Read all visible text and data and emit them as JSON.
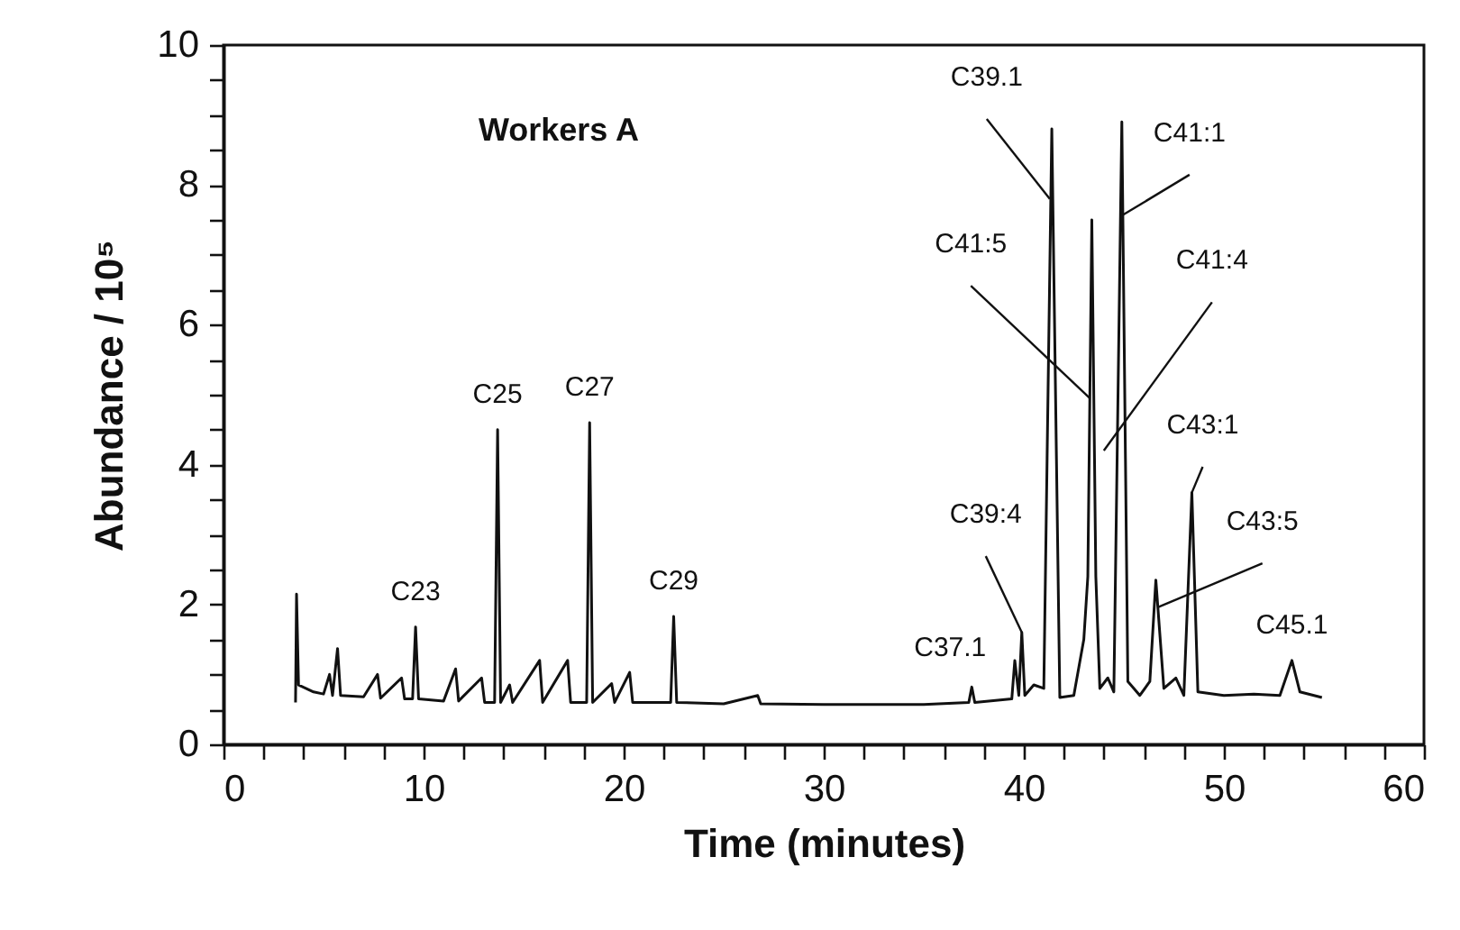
{
  "chart_data": {
    "type": "line",
    "xlabel": "Time  (minutes)",
    "ylabel": "Abundance / 10⁵",
    "xlim": [
      0,
      60
    ],
    "ylim": [
      0,
      10
    ],
    "xticks": [
      0,
      {
        "value": 2,
        "label": null
      },
      {
        "value": 4,
        "label": null
      },
      {
        "value": 6,
        "label": null
      },
      {
        "value": 8,
        "label": null
      },
      10,
      {
        "value": 12,
        "label": null
      },
      {
        "value": 14,
        "label": null
      },
      {
        "value": 16,
        "label": null
      },
      {
        "value": 18,
        "label": null
      },
      20,
      {
        "value": 22,
        "label": null
      },
      {
        "value": 24,
        "label": null
      },
      {
        "value": 26,
        "label": null
      },
      {
        "value": 28,
        "label": null
      },
      30,
      {
        "value": 32,
        "label": null
      },
      {
        "value": 34,
        "label": null
      },
      {
        "value": 36,
        "label": null
      },
      {
        "value": 38,
        "label": null
      },
      40,
      {
        "value": 42,
        "label": null
      },
      {
        "value": 44,
        "label": null
      },
      {
        "value": 46,
        "label": null
      },
      {
        "value": 48,
        "label": null
      },
      50,
      {
        "value": 52,
        "label": null
      },
      {
        "value": 54,
        "label": null
      },
      {
        "value": 56,
        "label": null
      },
      {
        "value": 58,
        "label": null
      },
      60
    ],
    "yticks": [
      0,
      {
        "value": 0.5,
        "label": null
      },
      {
        "value": 1,
        "label": null
      },
      {
        "value": 1.5,
        "label": null
      },
      2,
      {
        "value": 2.5,
        "label": null
      },
      {
        "value": 3,
        "label": null
      },
      {
        "value": 3.5,
        "label": null
      },
      4,
      {
        "value": 4.5,
        "label": null
      },
      {
        "value": 5,
        "label": null
      },
      {
        "value": 5.5,
        "label": null
      },
      6,
      {
        "value": 6.5,
        "label": null
      },
      {
        "value": 7,
        "label": null
      },
      {
        "value": 7.5,
        "label": null
      },
      8,
      {
        "value": 8.5,
        "label": null
      },
      {
        "value": 9,
        "label": null
      },
      {
        "value": 9.5,
        "label": null
      },
      10
    ],
    "grid": false,
    "marker": "none",
    "line_style": "solid",
    "series": [
      {
        "color": "#111111",
        "x": [
          3.6,
          3.65,
          3.75,
          4.5,
          5.0,
          5.3,
          5.45,
          5.7,
          5.85,
          7.0,
          7.7,
          7.85,
          8.9,
          9.05,
          9.45,
          9.6,
          9.75,
          11.0,
          11.6,
          11.75,
          12.9,
          13.05,
          13.55,
          13.7,
          13.85,
          14.3,
          14.45,
          15.8,
          15.95,
          17.2,
          17.35,
          18.15,
          18.3,
          18.45,
          19.4,
          19.55,
          20.3,
          20.45,
          22.35,
          22.5,
          22.65,
          25.0,
          26.7,
          26.85,
          30.0,
          35.0,
          37.25,
          37.4,
          37.55,
          39.4,
          39.55,
          39.75,
          39.9,
          40.05,
          40.5,
          41.0,
          41.4,
          41.8,
          42.5,
          43.0,
          43.2,
          43.4,
          43.6,
          43.8,
          44.2,
          44.5,
          44.9,
          45.2,
          45.8,
          46.3,
          46.6,
          47.0,
          47.6,
          48.0,
          48.4,
          48.7,
          50.0,
          51.5,
          52.8,
          53.4,
          53.8,
          54.9
        ],
        "values": [
          0.6,
          2.15,
          0.85,
          0.75,
          0.72,
          1.0,
          0.7,
          1.37,
          0.7,
          0.68,
          1.0,
          0.66,
          0.95,
          0.65,
          0.65,
          1.68,
          0.65,
          0.62,
          1.08,
          0.62,
          0.95,
          0.6,
          0.6,
          4.5,
          0.6,
          0.85,
          0.6,
          1.2,
          0.6,
          1.2,
          0.6,
          0.6,
          4.6,
          0.6,
          0.87,
          0.6,
          1.03,
          0.6,
          0.6,
          1.83,
          0.6,
          0.58,
          0.7,
          0.58,
          0.57,
          0.57,
          0.6,
          0.82,
          0.6,
          0.65,
          1.2,
          0.7,
          1.6,
          0.7,
          0.85,
          0.8,
          8.8,
          0.67,
          0.7,
          1.5,
          2.4,
          7.5,
          2.4,
          0.8,
          0.95,
          0.75,
          8.9,
          0.9,
          0.7,
          0.9,
          2.35,
          0.8,
          0.95,
          0.7,
          3.6,
          0.75,
          0.7,
          0.72,
          0.7,
          1.2,
          0.75,
          0.67
        ]
      }
    ],
    "annotations": [
      "Workers A",
      {
        "text": "C23",
        "x": 9.6,
        "y": 1.68
      },
      {
        "text": "C25",
        "x": 13.7,
        "y": 4.5
      },
      {
        "text": "C27",
        "x": 18.3,
        "y": 4.6
      },
      {
        "text": "C29",
        "x": 22.5,
        "y": 1.83
      },
      {
        "text": "C37.1",
        "x": 37.4,
        "y": 0.82
      },
      {
        "text": "C39:4",
        "x": 39.9,
        "y": 1.6
      },
      {
        "text": "C39.1",
        "x": 41.3,
        "y": 7.8
      },
      {
        "text": "C41:5",
        "x": 43.3,
        "y": 4.95
      },
      {
        "text": "C41:4",
        "x": 44.0,
        "y": 4.2
      },
      {
        "text": "C41:1",
        "x": 44.95,
        "y": 7.57
      },
      {
        "text": "C43:1",
        "x": 48.4,
        "y": 3.6
      },
      {
        "text": "C43:5",
        "x": 46.7,
        "y": 1.96
      },
      {
        "text": "C45.1",
        "x": 53.4,
        "y": 1.2
      }
    ]
  }
}
